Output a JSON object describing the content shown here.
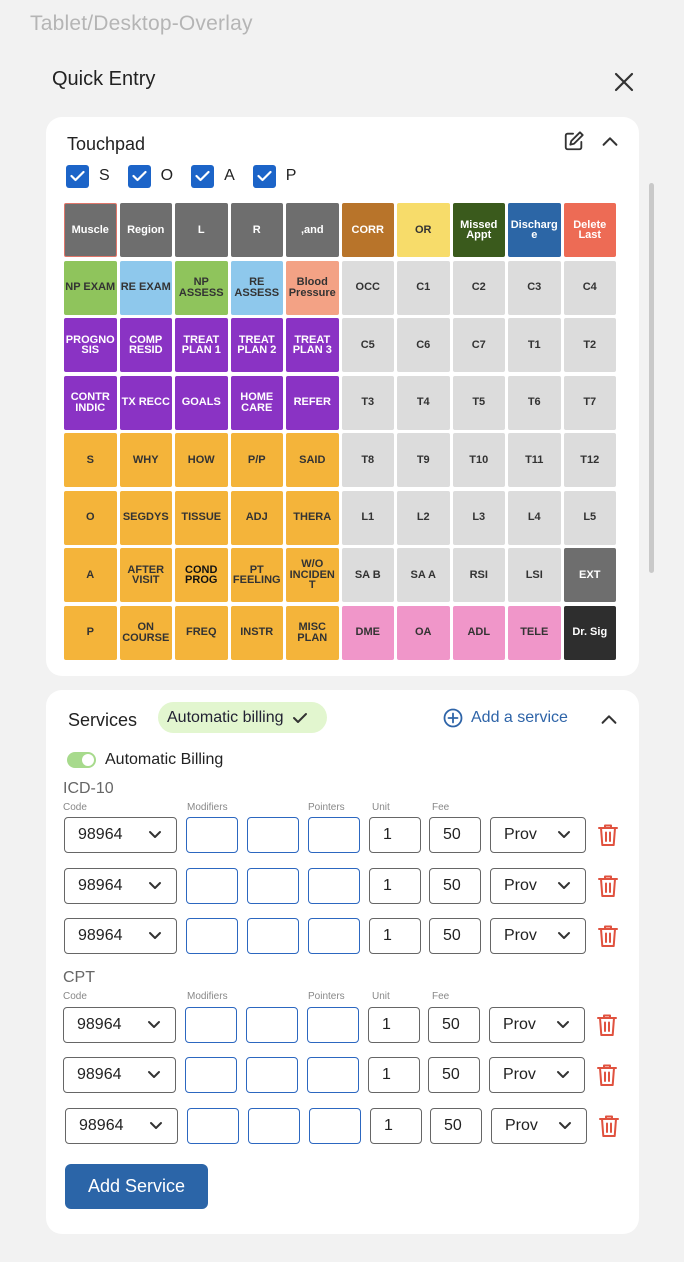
{
  "frame_label": "Tablet/Desktop-Overlay",
  "header": {
    "title": "Quick Entry"
  },
  "touchpad": {
    "title": "Touchpad",
    "soap": [
      {
        "label": "S",
        "checked": true
      },
      {
        "label": "O",
        "checked": true
      },
      {
        "label": "A",
        "checked": true
      },
      {
        "label": "P",
        "checked": true
      }
    ],
    "rows": [
      [
        [
          "Muscle",
          "#6e6e6e",
          "#ffffff",
          "#e0766a"
        ],
        [
          "Region",
          "#6e6e6e",
          "#ffffff",
          ""
        ],
        [
          "L",
          "#6e6e6e",
          "#ffffff",
          ""
        ],
        [
          "R",
          "#6e6e6e",
          "#ffffff",
          ""
        ],
        [
          ",and",
          "#6e6e6e",
          "#ffffff",
          ""
        ],
        [
          "CORR",
          "#b8742a",
          "#ffffff",
          ""
        ],
        [
          "OR",
          "#f7dc6a",
          "#333333",
          ""
        ],
        [
          "Missed Appt",
          "#3a5a1c",
          "#ffffff",
          ""
        ],
        [
          "Discharge",
          "#2c66a6",
          "#ffffff",
          ""
        ],
        [
          "Delete Last",
          "#ed6b55",
          "#ffffff",
          ""
        ]
      ],
      [
        [
          "NP EXAM",
          "#8fc45c",
          "#333333",
          ""
        ],
        [
          "RE EXAM",
          "#8ec8ec",
          "#333333",
          ""
        ],
        [
          "NP ASSESS",
          "#8fc45c",
          "#333333",
          ""
        ],
        [
          "RE ASSESS",
          "#8ec8ec",
          "#333333",
          ""
        ],
        [
          "Blood Pressure",
          "#f3a285",
          "#333333",
          ""
        ],
        [
          "OCC",
          "#dcdcdc",
          "#333333",
          ""
        ],
        [
          "C1",
          "#dcdcdc",
          "#333333",
          ""
        ],
        [
          "C2",
          "#dcdcdc",
          "#333333",
          ""
        ],
        [
          "C3",
          "#dcdcdc",
          "#333333",
          ""
        ],
        [
          "C4",
          "#dcdcdc",
          "#333333",
          ""
        ]
      ],
      [
        [
          "PROGNOSIS",
          "#8a33c4",
          "#ffffff",
          ""
        ],
        [
          "COMP RESID",
          "#8a33c4",
          "#ffffff",
          ""
        ],
        [
          "TREAT PLAN 1",
          "#8a33c4",
          "#ffffff",
          ""
        ],
        [
          "TREAT PLAN 2",
          "#8a33c4",
          "#ffffff",
          ""
        ],
        [
          "TREAT PLAN 3",
          "#8a33c4",
          "#ffffff",
          ""
        ],
        [
          "C5",
          "#dcdcdc",
          "#333333",
          ""
        ],
        [
          "C6",
          "#dcdcdc",
          "#333333",
          ""
        ],
        [
          "C7",
          "#dcdcdc",
          "#333333",
          ""
        ],
        [
          "T1",
          "#dcdcdc",
          "#333333",
          ""
        ],
        [
          "T2",
          "#dcdcdc",
          "#333333",
          ""
        ]
      ],
      [
        [
          "CONTR INDIC",
          "#8a33c4",
          "#ffffff",
          ""
        ],
        [
          "TX RECC",
          "#8a33c4",
          "#ffffff",
          ""
        ],
        [
          "GOALS",
          "#8a33c4",
          "#ffffff",
          ""
        ],
        [
          "HOME CARE",
          "#8a33c4",
          "#ffffff",
          ""
        ],
        [
          "REFER",
          "#8a33c4",
          "#ffffff",
          ""
        ],
        [
          "T3",
          "#dcdcdc",
          "#333333",
          ""
        ],
        [
          "T4",
          "#dcdcdc",
          "#333333",
          ""
        ],
        [
          "T5",
          "#dcdcdc",
          "#333333",
          ""
        ],
        [
          "T6",
          "#dcdcdc",
          "#333333",
          ""
        ],
        [
          "T7",
          "#dcdcdc",
          "#333333",
          ""
        ]
      ],
      [
        [
          "S",
          "#f4b43a",
          "#333333",
          ""
        ],
        [
          "WHY",
          "#f4b43a",
          "#333333",
          ""
        ],
        [
          "HOW",
          "#f4b43a",
          "#333333",
          ""
        ],
        [
          "P/P",
          "#f4b43a",
          "#333333",
          ""
        ],
        [
          "SAID",
          "#f4b43a",
          "#333333",
          ""
        ],
        [
          "T8",
          "#dcdcdc",
          "#333333",
          ""
        ],
        [
          "T9",
          "#dcdcdc",
          "#333333",
          ""
        ],
        [
          "T10",
          "#dcdcdc",
          "#333333",
          ""
        ],
        [
          "T11",
          "#dcdcdc",
          "#333333",
          ""
        ],
        [
          "T12",
          "#dcdcdc",
          "#333333",
          ""
        ]
      ],
      [
        [
          "O",
          "#f4b43a",
          "#333333",
          ""
        ],
        [
          "SEGDYS",
          "#f4b43a",
          "#333333",
          ""
        ],
        [
          "TISSUE",
          "#f4b43a",
          "#333333",
          ""
        ],
        [
          "ADJ",
          "#f4b43a",
          "#333333",
          ""
        ],
        [
          "THERA",
          "#f4b43a",
          "#333333",
          ""
        ],
        [
          "L1",
          "#dcdcdc",
          "#333333",
          ""
        ],
        [
          "L2",
          "#dcdcdc",
          "#333333",
          ""
        ],
        [
          "L3",
          "#dcdcdc",
          "#333333",
          ""
        ],
        [
          "L4",
          "#dcdcdc",
          "#333333",
          ""
        ],
        [
          "L5",
          "#dcdcdc",
          "#333333",
          ""
        ]
      ],
      [
        [
          "A",
          "#f4b43a",
          "#333333",
          ""
        ],
        [
          "AFTER VISIT",
          "#f4b43a",
          "#333333",
          ""
        ],
        [
          "COND PROG",
          "#f4b43a",
          "#111111",
          ""
        ],
        [
          "PT FEELING",
          "#f4b43a",
          "#333333",
          ""
        ],
        [
          "W/O INCIDENT",
          "#f4b43a",
          "#333333",
          ""
        ],
        [
          "SA B",
          "#dcdcdc",
          "#333333",
          ""
        ],
        [
          "SA A",
          "#dcdcdc",
          "#333333",
          ""
        ],
        [
          "RSI",
          "#dcdcdc",
          "#333333",
          ""
        ],
        [
          "LSI",
          "#dcdcdc",
          "#333333",
          ""
        ],
        [
          "EXT",
          "#6e6e6e",
          "#ffffff",
          ""
        ]
      ],
      [
        [
          "P",
          "#f4b43a",
          "#333333",
          ""
        ],
        [
          "ON COURSE",
          "#f4b43a",
          "#333333",
          ""
        ],
        [
          "FREQ",
          "#f4b43a",
          "#333333",
          ""
        ],
        [
          "INSTR",
          "#f4b43a",
          "#333333",
          ""
        ],
        [
          "MISC PLAN",
          "#f4b43a",
          "#333333",
          ""
        ],
        [
          "DME",
          "#f096c9",
          "#333333",
          ""
        ],
        [
          "OA",
          "#f096c9",
          "#333333",
          ""
        ],
        [
          "ADL",
          "#f096c9",
          "#333333",
          ""
        ],
        [
          "TELE",
          "#f096c9",
          "#333333",
          ""
        ],
        [
          "Dr. Sig",
          "#2e2e2e",
          "#ffffff",
          ""
        ]
      ]
    ]
  },
  "services": {
    "title": "Services",
    "badge": "Automatic billing",
    "add_link": "Add a service",
    "toggle_label": "Automatic Billing",
    "toggle_on": true,
    "col_labels": {
      "code": "Code",
      "modifiers": "Modifiers",
      "pointers": "Pointers",
      "unit": "Unit",
      "fee": "Fee"
    },
    "groups": [
      {
        "label": "ICD-10",
        "rows": [
          {
            "code": "98964",
            "unit": "1",
            "fee": "50",
            "prov": "Prov"
          },
          {
            "code": "98964",
            "unit": "1",
            "fee": "50",
            "prov": "Prov"
          },
          {
            "code": "98964",
            "unit": "1",
            "fee": "50",
            "prov": "Prov"
          }
        ]
      },
      {
        "label": "CPT",
        "rows": [
          {
            "code": "98964",
            "unit": "1",
            "fee": "50",
            "prov": "Prov"
          },
          {
            "code": "98964",
            "unit": "1",
            "fee": "50",
            "prov": "Prov"
          },
          {
            "code": "98964",
            "unit": "1",
            "fee": "50",
            "prov": "Prov"
          }
        ]
      }
    ],
    "add_button": "Add Service"
  },
  "colors": {
    "accent": "#2b65a8",
    "checkbox": "#1c64c8",
    "trash": "#e0523f",
    "field_border": "#2c67c0"
  }
}
